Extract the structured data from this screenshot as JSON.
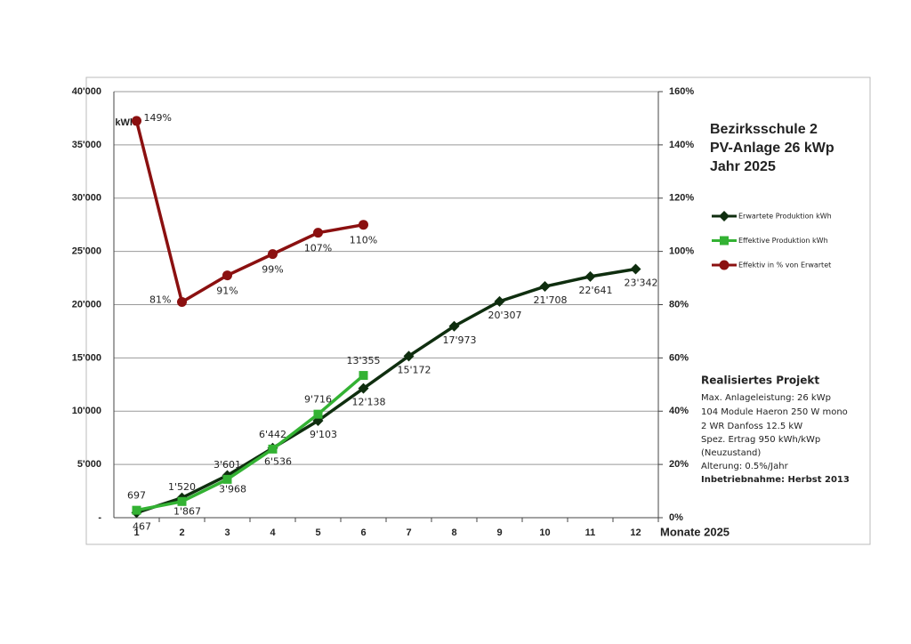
{
  "chart_data": {
    "type": "line",
    "title": [
      "Bezirksschule 2",
      "PV-Anlage 26 kWp",
      "Jahr 2025"
    ],
    "y_unit": "kWh",
    "x_label": "Monate 2025",
    "categories": [
      "1",
      "2",
      "3",
      "4",
      "5",
      "6",
      "7",
      "8",
      "9",
      "10",
      "11",
      "12"
    ],
    "ylim": [
      0,
      40000
    ],
    "yticks": [
      {
        "value": 0,
        "label": "-"
      },
      {
        "value": 5000,
        "label": "5'000"
      },
      {
        "value": 10000,
        "label": "10'000"
      },
      {
        "value": 15000,
        "label": "15'000"
      },
      {
        "value": 20000,
        "label": "20'000"
      },
      {
        "value": 25000,
        "label": "25'000"
      },
      {
        "value": 30000,
        "label": "30'000"
      },
      {
        "value": 35000,
        "label": "35'000"
      },
      {
        "value": 40000,
        "label": "40'000"
      }
    ],
    "y2lim": [
      0,
      160
    ],
    "y2ticks": [
      {
        "value": 0,
        "label": "0%"
      },
      {
        "value": 20,
        "label": "20%"
      },
      {
        "value": 40,
        "label": "40%"
      },
      {
        "value": 60,
        "label": "60%"
      },
      {
        "value": 80,
        "label": "80%"
      },
      {
        "value": 100,
        "label": "100%"
      },
      {
        "value": 120,
        "label": "120%"
      },
      {
        "value": 140,
        "label": "140%"
      },
      {
        "value": 160,
        "label": "160%"
      }
    ],
    "grid": true,
    "legend": "right",
    "series": [
      {
        "name": "Erwartete Produktion kWh",
        "color": "#0f2e0f",
        "marker": "diamond",
        "values": [
          467,
          1867,
          3968,
          6536,
          9103,
          12138,
          15172,
          17973,
          20307,
          21708,
          22641,
          23342
        ],
        "value_labels": [
          "467",
          "1'867",
          "3'968",
          "6'536",
          "9'103",
          "12'138",
          "15'172",
          "17'973",
          "20'307",
          "21'708",
          "22'641",
          "23'342"
        ]
      },
      {
        "name": "Effektive Produktion kWh",
        "color": "#33b233",
        "marker": "square",
        "values": [
          697,
          1520,
          3601,
          6442,
          9716,
          13355,
          null,
          null,
          null,
          null,
          null,
          null
        ],
        "value_labels": [
          "697",
          "1'520",
          "3'601",
          "6'442",
          "9'716",
          "13'355",
          null,
          null,
          null,
          null,
          null,
          null
        ]
      },
      {
        "name": "Effektiv in % von Erwartet",
        "color": "#8b1010",
        "marker": "circle",
        "axis": "y2",
        "values": [
          149,
          81,
          91,
          99,
          107,
          110,
          null,
          null,
          null,
          null,
          null,
          null
        ],
        "value_labels": [
          "149%",
          "81%",
          "91%",
          "99%",
          "107%",
          "110%",
          null,
          null,
          null,
          null,
          null,
          null
        ]
      }
    ],
    "annotations": [
      "Realisiertes Projekt",
      "Max. Anlageleistung:  26 kWp",
      "104 Module Haeron 250 W mono",
      "2 WR Danfoss 12.5 kW",
      "Spez. Ertrag 950 kWh/kWp",
      "(Neuzustand)",
      "Alterung: 0.5%/Jahr",
      "Inbetriebnahme:  Herbst 2013"
    ]
  }
}
